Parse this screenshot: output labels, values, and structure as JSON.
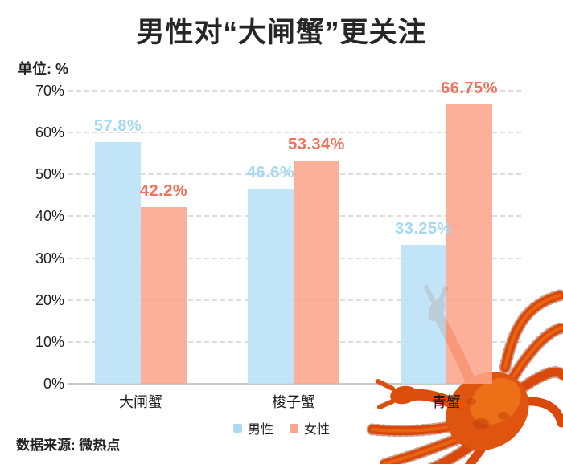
{
  "title": "男性对“大闸蟹”更关注",
  "unit_label": "单位: %",
  "source": "数据来源: 微热点",
  "decoration": {
    "crab_icon": "cooked-orange-crab-photo-bottom-right"
  },
  "chart_data": {
    "type": "bar",
    "title": "男性对“大闸蟹”更关注",
    "categories": [
      "大闸蟹",
      "梭子蟹",
      "青蟹"
    ],
    "series": [
      {
        "name": "男性",
        "values": [
          57.8,
          46.6,
          33.25
        ],
        "color": "#B9E0F8",
        "label_color": "#A6D7F2",
        "legend_color": "#AFD9F1"
      },
      {
        "name": "女性",
        "values": [
          42.2,
          53.34,
          66.75
        ],
        "color": "#FDA48A",
        "label_color": "#F4705C",
        "legend_color": "#F5A78F"
      }
    ],
    "value_label_suffix": "%",
    "ylabel": "单位: %",
    "ylim": [
      0,
      70
    ],
    "ytick_values": [
      0,
      10,
      20,
      30,
      40,
      50,
      60,
      70
    ],
    "ytick_suffix": "%",
    "grid": "horizontal-dashed",
    "legend_position": "bottom-center"
  }
}
